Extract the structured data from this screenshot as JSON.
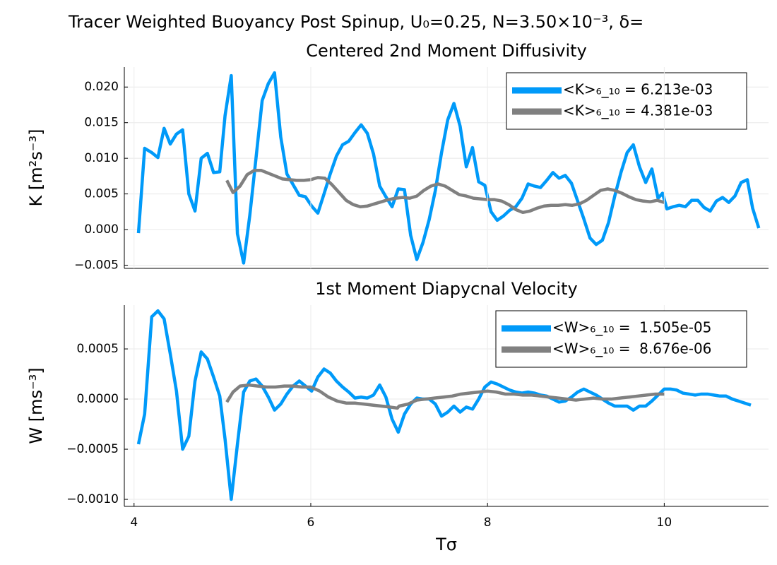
{
  "title": "Tracer Weighted Buoyancy Post Spinup, U₀=0.25, N=3.50×10⁻³, δ=",
  "chart_data": [
    {
      "type": "line",
      "title": "Centered 2nd Moment Diffusivity",
      "ylabel": "K [m²s⁻³]",
      "xlim": [
        3.89,
        11.18
      ],
      "ylim": [
        -0.00545,
        0.0228
      ],
      "yticks": [
        {
          "value": -0.005,
          "label": "−0.005"
        },
        {
          "value": 0,
          "label": "0.000"
        },
        {
          "value": 0.005,
          "label": "0.005"
        },
        {
          "value": 0.01,
          "label": "0.010"
        },
        {
          "value": 0.015,
          "label": "0.015"
        },
        {
          "value": 0.02,
          "label": "0.020"
        }
      ],
      "grid": true,
      "legend": "top-right",
      "series": [
        {
          "name": "<K>₆_₁₀ = 6.213e-03",
          "color": "#009af9",
          "x": [
            4.05,
            4.12,
            4.2,
            4.27,
            4.34,
            4.41,
            4.48,
            4.55,
            4.62,
            4.69,
            4.76,
            4.83,
            4.9,
            4.97,
            5.03,
            5.1,
            5.17,
            5.24,
            5.31,
            5.38,
            5.45,
            5.52,
            5.59,
            5.66,
            5.73,
            5.8,
            5.87,
            5.94,
            6.01,
            6.08,
            6.15,
            6.22,
            6.29,
            6.36,
            6.43,
            6.5,
            6.57,
            6.64,
            6.71,
            6.78,
            6.85,
            6.92,
            6.99,
            7.06,
            7.13,
            7.2,
            7.27,
            7.34,
            7.41,
            7.48,
            7.55,
            7.62,
            7.69,
            7.76,
            7.83,
            7.9,
            7.97,
            8.04,
            8.11,
            8.18,
            8.25,
            8.32,
            8.39,
            8.46,
            8.53,
            8.6,
            8.67,
            8.74,
            8.81,
            8.88,
            8.95,
            9.02,
            9.09,
            9.16,
            9.23,
            9.3,
            9.37,
            9.44,
            9.51,
            9.58,
            9.65,
            9.72,
            9.79,
            9.86,
            9.93,
            9.98,
            10.03,
            10.1,
            10.17,
            10.24,
            10.31,
            10.38,
            10.45,
            10.52,
            10.59,
            10.66,
            10.73,
            10.8,
            10.87,
            10.94,
            11.0,
            11.07
          ],
          "values": [
            -0.0005,
            0.0114,
            0.0108,
            0.0101,
            0.0142,
            0.012,
            0.0134,
            0.014,
            0.005,
            0.0026,
            0.01,
            0.0107,
            0.008,
            0.0081,
            0.016,
            0.0216,
            -0.0006,
            -0.0047,
            0.002,
            0.01,
            0.0181,
            0.0205,
            0.022,
            0.013,
            0.0078,
            0.0063,
            0.0048,
            0.0046,
            0.0033,
            0.0023,
            0.005,
            0.0078,
            0.0103,
            0.0119,
            0.0124,
            0.0136,
            0.0147,
            0.0135,
            0.0106,
            0.0061,
            0.0046,
            0.0032,
            0.0057,
            0.0056,
            -0.0008,
            -0.0042,
            -0.0018,
            0.0014,
            0.0055,
            0.0108,
            0.0154,
            0.0177,
            0.0145,
            0.0088,
            0.0115,
            0.0067,
            0.0062,
            0.0025,
            0.0013,
            0.0019,
            0.0027,
            0.0032,
            0.0044,
            0.0064,
            0.0061,
            0.0059,
            0.0069,
            0.008,
            0.0072,
            0.0076,
            0.0065,
            0.004,
            0.0015,
            -0.0012,
            -0.0021,
            -0.0015,
            0.001,
            0.0047,
            0.008,
            0.0108,
            0.0119,
            0.0088,
            0.0066,
            0.0085,
            0.0044,
            0.0051,
            0.0029,
            0.0032,
            0.0034,
            0.0032,
            0.0041,
            0.0041,
            0.0031,
            0.0026,
            0.004,
            0.0045,
            0.0038,
            0.0047,
            0.0066,
            0.007,
            0.003,
            0.0002
          ]
        },
        {
          "name": "<K>₆_₁₀ = 4.381e-03",
          "color": "#808080",
          "x": [
            5.05,
            5.12,
            5.2,
            5.28,
            5.36,
            5.44,
            5.52,
            5.6,
            5.68,
            5.76,
            5.84,
            5.92,
            6.0,
            6.08,
            6.16,
            6.24,
            6.32,
            6.4,
            6.48,
            6.56,
            6.64,
            6.72,
            6.8,
            6.88,
            6.96,
            7.04,
            7.12,
            7.2,
            7.28,
            7.36,
            7.44,
            7.52,
            7.6,
            7.68,
            7.76,
            7.84,
            7.92,
            8.0,
            8.08,
            8.16,
            8.24,
            8.32,
            8.4,
            8.48,
            8.56,
            8.64,
            8.72,
            8.8,
            8.88,
            8.96,
            9.04,
            9.12,
            9.2,
            9.28,
            9.36,
            9.44,
            9.52,
            9.6,
            9.68,
            9.76,
            9.84,
            9.92,
            10.0
          ],
          "values": [
            0.0069,
            0.0052,
            0.0061,
            0.0077,
            0.0083,
            0.0083,
            0.0079,
            0.0075,
            0.0071,
            0.007,
            0.0069,
            0.0069,
            0.007,
            0.0073,
            0.0072,
            0.0063,
            0.0052,
            0.0041,
            0.0035,
            0.0032,
            0.0033,
            0.0036,
            0.0039,
            0.0042,
            0.0044,
            0.0045,
            0.0044,
            0.0047,
            0.0055,
            0.0061,
            0.0064,
            0.0061,
            0.0055,
            0.0049,
            0.0047,
            0.0044,
            0.0043,
            0.0042,
            0.0042,
            0.004,
            0.0035,
            0.0028,
            0.0024,
            0.0026,
            0.003,
            0.0033,
            0.0034,
            0.0034,
            0.0035,
            0.0034,
            0.0036,
            0.0041,
            0.0048,
            0.0055,
            0.0057,
            0.0055,
            0.0051,
            0.0046,
            0.0042,
            0.004,
            0.0039,
            0.0041,
            0.0038
          ]
        }
      ]
    },
    {
      "type": "line",
      "title": "1st Moment Diapycnal Velocity",
      "ylabel": "W [ms⁻³]",
      "xlabel": "Tσ",
      "xlim": [
        3.89,
        11.18
      ],
      "ylim": [
        -0.00107,
        0.000937
      ],
      "xticks": [
        4,
        6,
        8,
        10
      ],
      "yticks": [
        {
          "value": -0.001,
          "label": "−0.0010"
        },
        {
          "value": -0.0005,
          "label": "−0.0005"
        },
        {
          "value": 0,
          "label": "0.0000"
        },
        {
          "value": 0.0005,
          "label": "0.0005"
        }
      ],
      "grid": true,
      "legend": "top-right",
      "series": [
        {
          "name": "<W>₆_₁₀ =  1.505e-05",
          "color": "#009af9",
          "x": [
            4.05,
            4.12,
            4.2,
            4.27,
            4.34,
            4.41,
            4.48,
            4.55,
            4.62,
            4.69,
            4.76,
            4.83,
            4.9,
            4.97,
            5.03,
            5.1,
            5.17,
            5.24,
            5.31,
            5.38,
            5.45,
            5.52,
            5.59,
            5.66,
            5.73,
            5.8,
            5.87,
            5.94,
            6.01,
            6.08,
            6.15,
            6.22,
            6.29,
            6.36,
            6.43,
            6.5,
            6.57,
            6.64,
            6.71,
            6.78,
            6.85,
            6.92,
            6.99,
            7.06,
            7.13,
            7.2,
            7.27,
            7.34,
            7.41,
            7.48,
            7.55,
            7.62,
            7.69,
            7.76,
            7.83,
            7.9,
            7.97,
            8.04,
            8.11,
            8.18,
            8.25,
            8.32,
            8.39,
            8.46,
            8.53,
            8.6,
            8.67,
            8.74,
            8.81,
            8.88,
            8.95,
            9.02,
            9.09,
            9.16,
            9.23,
            9.3,
            9.37,
            9.44,
            9.51,
            9.58,
            9.65,
            9.72,
            9.79,
            9.86,
            9.93,
            10.0,
            10.07,
            10.14,
            10.21,
            10.28,
            10.35,
            10.42,
            10.49,
            10.56,
            10.63,
            10.7,
            10.77,
            10.84,
            10.91,
            10.98
          ],
          "values": [
            -0.00045,
            -0.00015,
            0.00082,
            0.00088,
            0.0008,
            0.00045,
            8e-05,
            -0.0005,
            -0.00037,
            0.00018,
            0.00047,
            0.0004,
            0.00022,
            3e-05,
            -0.0004,
            -0.001,
            -0.00045,
            7e-05,
            0.00018,
            0.0002,
            0.00013,
            2e-05,
            -0.00011,
            -5e-05,
            5e-05,
            0.00013,
            0.00018,
            0.00013,
            8e-05,
            0.00022,
            0.0003,
            0.00026,
            0.00018,
            0.00012,
            7e-05,
            1e-05,
            2e-05,
            1e-05,
            4e-05,
            0.00014,
            2e-05,
            -0.0002,
            -0.00033,
            -0.00015,
            -5e-05,
            1e-05,
            0,
            0,
            -5e-05,
            -0.00017,
            -0.00013,
            -7e-05,
            -0.00013,
            -8e-05,
            -0.0001,
            0,
            0.00012,
            0.00017,
            0.00015,
            0.00012,
            9e-05,
            7e-05,
            6e-05,
            7e-05,
            6e-05,
            4e-05,
            3e-05,
            0,
            -3e-05,
            -2e-05,
            2e-05,
            7e-05,
            0.0001,
            7e-05,
            4e-05,
            0,
            -4e-05,
            -7e-05,
            -7e-05,
            -7e-05,
            -0.00011,
            -7e-05,
            -7e-05,
            -2e-05,
            4e-05,
            0.0001,
            0.0001,
            9e-05,
            6e-05,
            5e-05,
            4e-05,
            5e-05,
            5e-05,
            4e-05,
            3e-05,
            3e-05,
            0,
            -2e-05,
            -4e-05,
            -6e-05
          ]
        },
        {
          "name": "<W>₆_₁₀ =  8.676e-06",
          "color": "#808080",
          "x": [
            5.05,
            5.12,
            5.2,
            5.3,
            5.4,
            5.5,
            5.6,
            5.7,
            5.8,
            5.9,
            6.0,
            6.1,
            6.2,
            6.3,
            6.4,
            6.5,
            6.6,
            6.7,
            6.8,
            6.9,
            6.98,
            7.0,
            7.1,
            7.2,
            7.3,
            7.4,
            7.5,
            7.6,
            7.7,
            7.8,
            7.9,
            8.0,
            8.1,
            8.2,
            8.3,
            8.4,
            8.5,
            8.6,
            8.7,
            8.8,
            8.9,
            9.0,
            9.1,
            9.2,
            9.3,
            9.4,
            9.5,
            9.6,
            9.7,
            9.8,
            9.9,
            10.0
          ],
          "values": [
            -3e-05,
            7e-05,
            0.00013,
            0.00014,
            0.00013,
            0.00012,
            0.00012,
            0.00013,
            0.00013,
            0.00012,
            0.00012,
            8e-05,
            2e-05,
            -2e-05,
            -4e-05,
            -4e-05,
            -5e-05,
            -6e-05,
            -7e-05,
            -8e-05,
            -9e-05,
            -7e-05,
            -5e-05,
            -1e-05,
            0,
            1e-05,
            2e-05,
            3e-05,
            5e-05,
            6e-05,
            7e-05,
            8e-05,
            7e-05,
            5e-05,
            5e-05,
            4e-05,
            4e-05,
            3e-05,
            2e-05,
            1e-05,
            0,
            -1e-05,
            0,
            1e-05,
            0,
            0,
            1e-05,
            2e-05,
            3e-05,
            4e-05,
            5e-05,
            5e-05
          ]
        }
      ]
    }
  ]
}
